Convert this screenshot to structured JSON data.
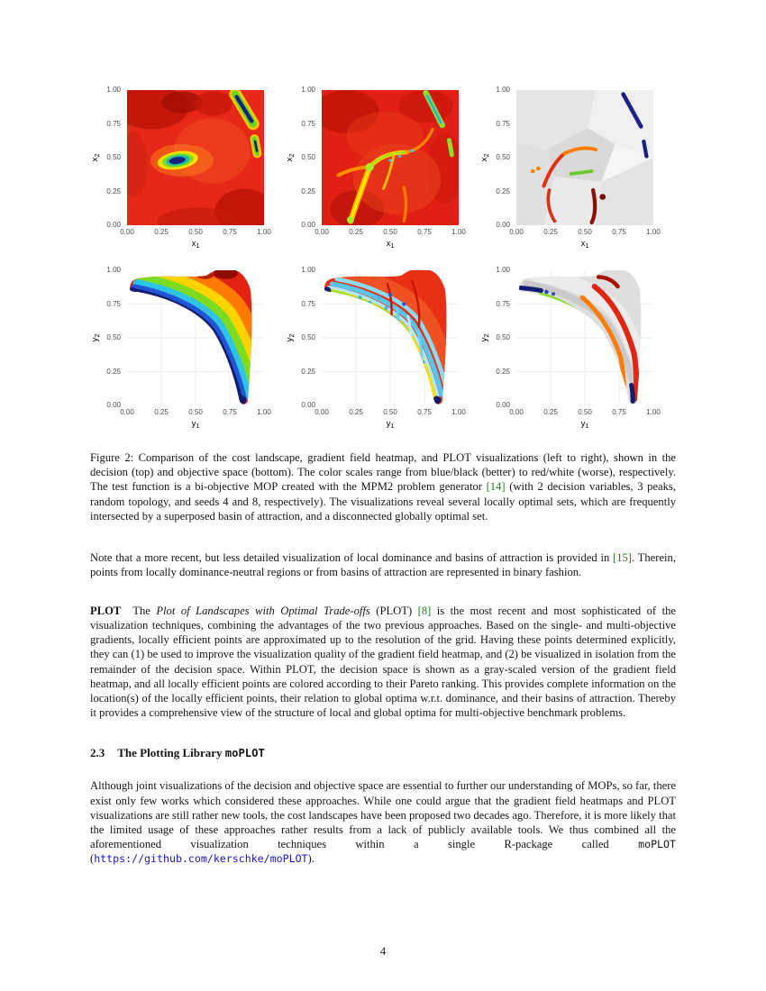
{
  "page": {
    "number": "4"
  },
  "colors": {
    "citation": "#237a23",
    "link": "#1912c8"
  },
  "figure": {
    "ticks_x": [
      "0.00",
      "0.25",
      "0.50",
      "0.75",
      "1.00"
    ],
    "ticks_y": [
      "1.00",
      "0.75",
      "0.50",
      "0.25",
      "0.00"
    ],
    "plots": [
      {
        "xlabel_base": "x",
        "xlabel_sub": "1",
        "ylabel_base": "x",
        "ylabel_sub": "2"
      },
      {
        "xlabel_base": "x",
        "xlabel_sub": "1",
        "ylabel_base": "x",
        "ylabel_sub": "2"
      },
      {
        "xlabel_base": "x",
        "xlabel_sub": "1",
        "ylabel_base": "x",
        "ylabel_sub": "2"
      },
      {
        "xlabel_base": "y",
        "xlabel_sub": "1",
        "ylabel_base": "y",
        "ylabel_sub": "2"
      },
      {
        "xlabel_base": "y",
        "xlabel_sub": "1",
        "ylabel_base": "y",
        "ylabel_sub": "2"
      },
      {
        "xlabel_base": "y",
        "xlabel_sub": "1",
        "ylabel_base": "y",
        "ylabel_sub": "2"
      }
    ],
    "caption": {
      "t1": "Figure 2: Comparison of the cost landscape, gradient field heatmap, and PLOT visualizations (left to right), shown in the decision (top) and objective space (bottom). The color scales range from blue/black (better) to red/white (worse), respectively. The test function is a bi-objective MOP created with the MPM2 problem generator ",
      "cite14": "[14]",
      "t2": " (with 2 decision variables, 3 peaks, random topology, and seeds 4 and 8, respectively). The visualizations reveal several locally optimal sets, which are frequently intersected by a superposed basin of attraction, and a disconnected globally optimal set."
    }
  },
  "body": {
    "note": {
      "t1": "Note that a more recent, but less detailed visualization of local dominance and basins of attraction is provided in ",
      "cite15": "[15]",
      "t2": ". Therein, points from locally dominance-neutral regions or from basins of attraction are represented in binary fashion."
    },
    "plot_par": {
      "label": "PLOT",
      "t1": "The ",
      "italic": "Plot of Landscapes with Optimal Trade-offs",
      "t2": " (PLOT) ",
      "cite8": "[8]",
      "t3": " is the most recent and most sophisticated of the visualization techniques, combining the advantages of the two previous approaches. Based on the single- and multi-objective gradients, locally efficient points are approximated up to the resolution of the grid. Having these points determined explicitly, they can (1) be used to improve the visualization quality of the gradient field heatmap, and (2) be visualized in isolation from the remainder of the decision space. Within PLOT, the decision space is shown as a gray-scaled version of the gradient field heatmap, and all locally efficient points are colored according to their Pareto ranking. This provides complete information on the location(s) of the locally efficient points, their relation to global optima w.r.t. dominance, and their basins of attraction. Thereby it provides a comprehensive view of the structure of local and global optima for multi-objective benchmark problems."
    },
    "section": {
      "number": "2.3",
      "title": "The Plotting Library ",
      "title_mono": "moPLOT"
    },
    "moplot_par": {
      "t1": "Although joint visualizations of the decision and objective space are essential to further our understanding of MOPs, so far, there exist only few works which considered these approaches. While one could argue that the gradient field heatmaps and PLOT visualizations are still rather new tools, the cost landscapes have been proposed two decades ago. Therefore, it is more likely that the limited usage of these approaches rather results from a lack of publicly available tools. We thus combined all the aforementioned visualization techniques within a single R-package called ",
      "mono": "moPLOT",
      "t2": " (",
      "url": "https://github.com/kerschke/moPLOT",
      "t3": ")."
    }
  }
}
